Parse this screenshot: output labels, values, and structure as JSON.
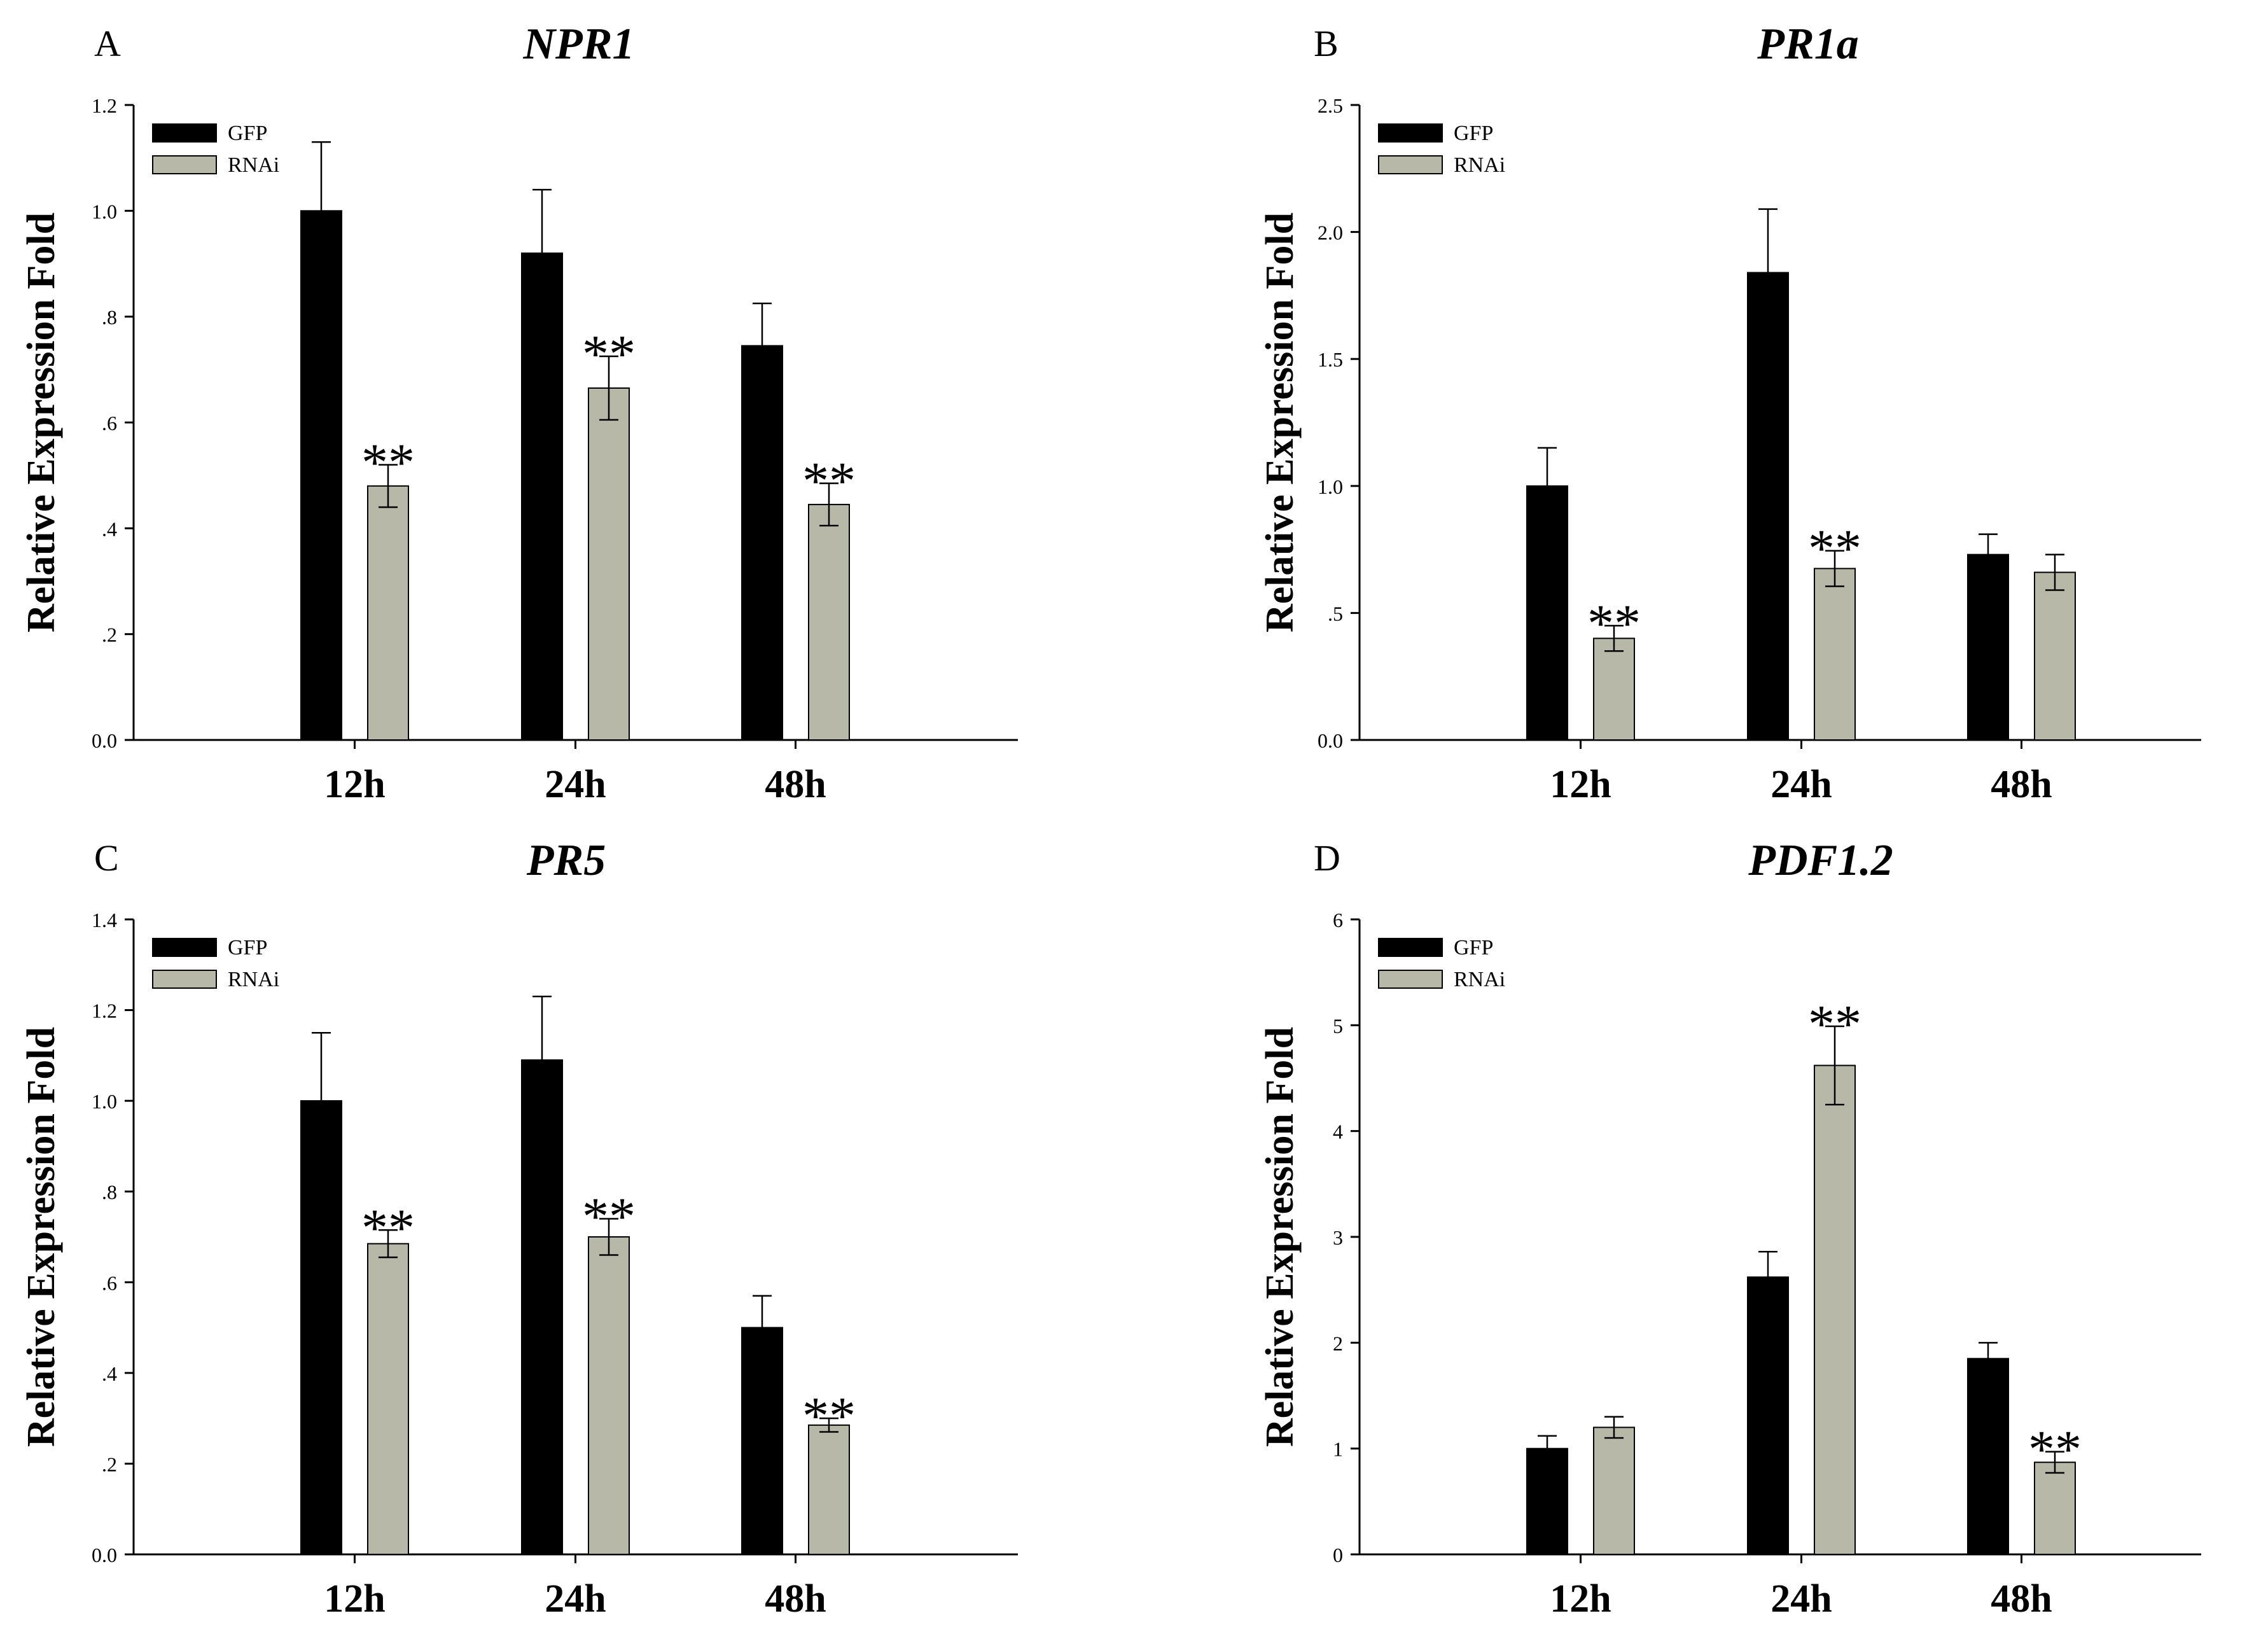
{
  "chart_data": [
    {
      "panel": "A",
      "title": "NPR1",
      "type": "bar",
      "ylabel": "Relative Expression Fold",
      "categories": [
        "12h",
        "24h",
        "48h"
      ],
      "ylim": [
        0,
        1.2
      ],
      "yticks": [
        0.0,
        0.2,
        0.4,
        0.6,
        0.8,
        1.0,
        1.2
      ],
      "ytick_labels": [
        "0.0",
        ".2",
        ".4",
        ".6",
        ".8",
        "1.0",
        "1.2"
      ],
      "legend": [
        "GFP",
        "RNAi"
      ],
      "legend_position": "top-left",
      "series": [
        {
          "name": "GFP",
          "color": "#000000",
          "values": [
            1.0,
            0.92,
            0.745
          ],
          "errors": [
            0.13,
            0.12,
            0.08
          ]
        },
        {
          "name": "RNAi",
          "color": "#b8b8a8",
          "values": [
            0.48,
            0.665,
            0.445
          ],
          "errors": [
            0.04,
            0.06,
            0.04
          ]
        }
      ],
      "annotations": [
        {
          "series": 1,
          "index": 0,
          "text": "**"
        },
        {
          "series": 1,
          "index": 1,
          "text": "**"
        },
        {
          "series": 1,
          "index": 2,
          "text": "**"
        }
      ]
    },
    {
      "panel": "B",
      "title": "PR1a",
      "type": "bar",
      "ylabel": "Relative Expression Fold",
      "categories": [
        "12h",
        "24h",
        "48h"
      ],
      "ylim": [
        0,
        2.5
      ],
      "yticks": [
        0.0,
        0.5,
        1.0,
        1.5,
        2.0,
        2.5
      ],
      "ytick_labels": [
        "0.0",
        ".5",
        "1.0",
        "1.5",
        "2.0",
        "2.5"
      ],
      "legend": [
        "GFP",
        "RNAi"
      ],
      "legend_position": "top-left",
      "series": [
        {
          "name": "GFP",
          "color": "#000000",
          "values": [
            1.0,
            1.84,
            0.73
          ],
          "errors": [
            0.15,
            0.25,
            0.08
          ]
        },
        {
          "name": "RNAi",
          "color": "#b8b8a8",
          "values": [
            0.4,
            0.675,
            0.66
          ],
          "errors": [
            0.05,
            0.07,
            0.07
          ]
        }
      ],
      "annotations": [
        {
          "series": 1,
          "index": 0,
          "text": "**"
        },
        {
          "series": 1,
          "index": 1,
          "text": "**"
        }
      ]
    },
    {
      "panel": "C",
      "title": "PR5",
      "type": "bar",
      "ylabel": "Relative Expression Fold",
      "categories": [
        "12h",
        "24h",
        "48h"
      ],
      "ylim": [
        0,
        1.4
      ],
      "yticks": [
        0.0,
        0.2,
        0.4,
        0.6,
        0.8,
        1.0,
        1.2,
        1.4
      ],
      "ytick_labels": [
        "0.0",
        ".2",
        ".4",
        ".6",
        ".8",
        "1.0",
        "1.2",
        "1.4"
      ],
      "legend": [
        "GFP",
        "RNAi"
      ],
      "legend_position": "top-left",
      "series": [
        {
          "name": "GFP",
          "color": "#000000",
          "values": [
            1.0,
            1.09,
            0.5
          ],
          "errors": [
            0.15,
            0.14,
            0.07
          ]
        },
        {
          "name": "RNAi",
          "color": "#b8b8a8",
          "values": [
            0.685,
            0.7,
            0.285
          ],
          "errors": [
            0.03,
            0.04,
            0.015
          ]
        }
      ],
      "annotations": [
        {
          "series": 1,
          "index": 0,
          "text": "**"
        },
        {
          "series": 1,
          "index": 1,
          "text": "**"
        },
        {
          "series": 1,
          "index": 2,
          "text": "**"
        }
      ]
    },
    {
      "panel": "D",
      "title": "PDF1.2",
      "type": "bar",
      "ylabel": "Relative Expression Fold",
      "categories": [
        "12h",
        "24h",
        "48h"
      ],
      "ylim": [
        0,
        6
      ],
      "yticks": [
        0,
        1,
        2,
        3,
        4,
        5,
        6
      ],
      "ytick_labels": [
        "0",
        "1",
        "2",
        "3",
        "4",
        "5",
        "6"
      ],
      "legend": [
        "GFP",
        "RNAi"
      ],
      "legend_position": "top-left",
      "series": [
        {
          "name": "GFP",
          "color": "#000000",
          "values": [
            1.0,
            2.62,
            1.85
          ],
          "errors": [
            0.12,
            0.24,
            0.15
          ]
        },
        {
          "name": "RNAi",
          "color": "#b8b8a8",
          "values": [
            1.2,
            4.62,
            0.87
          ],
          "errors": [
            0.1,
            0.37,
            0.1
          ]
        }
      ],
      "annotations": [
        {
          "series": 1,
          "index": 1,
          "text": "**"
        },
        {
          "series": 1,
          "index": 2,
          "text": "**"
        }
      ]
    }
  ]
}
